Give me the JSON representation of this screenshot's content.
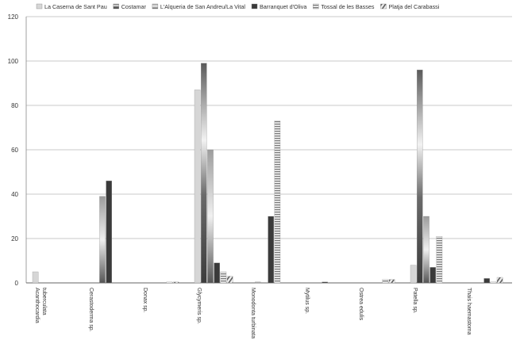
{
  "chart_data": {
    "type": "bar",
    "categories": [
      [
        "Acanthocardia",
        "tuberculata"
      ],
      [
        "Cerastoderma sp."
      ],
      [
        "Donax sp."
      ],
      [
        "Glycymeris sp."
      ],
      [
        "Monodonta turbinata"
      ],
      [
        "Mytilus sp."
      ],
      [
        "Ostrea edulis"
      ],
      [
        "Patella sp."
      ],
      [
        "Thais haemastoma"
      ]
    ],
    "series": [
      {
        "name": "La Caserna de Sant Pau",
        "color": "#d4d4d4",
        "pattern": "solid-light",
        "values": [
          5,
          0,
          0,
          87,
          0,
          0,
          0,
          8,
          0
        ]
      },
      {
        "name": "Costamar",
        "color": "#9a9a9a",
        "pattern": "gradient",
        "values": [
          0,
          0,
          0,
          99,
          0.4,
          0,
          0,
          96,
          0
        ]
      },
      {
        "name": "L'Alqueria de San Andreu/La Vital",
        "color": "#777777",
        "pattern": "gradient",
        "values": [
          0,
          39,
          0,
          60,
          0,
          0,
          0,
          30,
          0
        ]
      },
      {
        "name": "Barranquet d'Oliva",
        "color": "#2e2e2e",
        "pattern": "solid-dark",
        "values": [
          0,
          46,
          0,
          9,
          30,
          0.4,
          0,
          7,
          2
        ]
      },
      {
        "name": "Tossal de les Basses",
        "color": "#9d9d9d",
        "pattern": "hstripe",
        "values": [
          0,
          0,
          0.4,
          5,
          73,
          0,
          1.5,
          21,
          0.5
        ]
      },
      {
        "name": "Platja del Carabassi",
        "color": "#8a8a8a",
        "pattern": "diagonal",
        "values": [
          0,
          0,
          0.4,
          3,
          0,
          0,
          1.5,
          0,
          2.5
        ]
      }
    ],
    "ylim": [
      0,
      120
    ],
    "yticks": [
      "0",
      "20",
      "40",
      "60",
      "80",
      "100",
      "120"
    ],
    "grid": true,
    "legend_position": "top"
  }
}
